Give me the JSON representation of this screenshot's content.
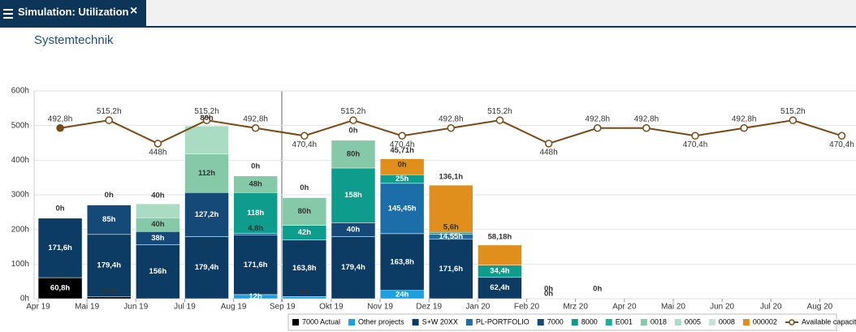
{
  "tab": {
    "title": "Simulation: Utilization"
  },
  "chart_data": {
    "type": "bar",
    "title": "Systemtechnik",
    "stacked": true,
    "grid": true,
    "categories": [
      "Apr 19",
      "Mai 19",
      "Jun 19",
      "Jul 19",
      "Aug 19",
      "Sep 19",
      "Okt 19",
      "Nov 19",
      "Dez 19",
      "Jan 20",
      "Feb 20",
      "Mrz 20",
      "Apr 20",
      "Mai 20",
      "Jun 20",
      "Jul 20",
      "Aug 20"
    ],
    "ylim": [
      0,
      600
    ],
    "yticks": [
      {
        "value": 0,
        "label": "0h"
      },
      {
        "value": 100,
        "label": "100h"
      },
      {
        "value": 200,
        "label": "200h"
      },
      {
        "value": 300,
        "label": "300h"
      },
      {
        "value": 400,
        "label": "400h"
      },
      {
        "value": 500,
        "label": "500h"
      },
      {
        "value": 600,
        "label": "600h"
      }
    ],
    "series": [
      {
        "name": "7000 Actual",
        "color": "#000000",
        "values": [
          60.8,
          6.2,
          null,
          null,
          null,
          null,
          null,
          null,
          null,
          null,
          null,
          null,
          null,
          null,
          null,
          null,
          null
        ],
        "value_labels": [
          "60,8h",
          "6,2h",
          null,
          null,
          null,
          null,
          null,
          null,
          null,
          null,
          null,
          null,
          null,
          null,
          null,
          null,
          null
        ]
      },
      {
        "name": "Other projects",
        "color": "#1ba1e2",
        "values": [
          null,
          null,
          null,
          null,
          12,
          6,
          null,
          24,
          null,
          null,
          null,
          null,
          null,
          null,
          null,
          null,
          null
        ],
        "value_labels": [
          null,
          null,
          null,
          null,
          "12h",
          "6h",
          null,
          "24h",
          null,
          null,
          null,
          null,
          null,
          null,
          null,
          null,
          null
        ]
      },
      {
        "name": "S+W 20XX",
        "color": "#0c3c64",
        "values": [
          171.6,
          179.4,
          156,
          179.4,
          171.6,
          163.8,
          179.4,
          163.8,
          171.6,
          62.4,
          null,
          null,
          null,
          null,
          null,
          null,
          null
        ],
        "value_labels": [
          "171,6h",
          "179,4h",
          "156h",
          "179,4h",
          "171,6h",
          "163,8h",
          "179,4h",
          "163,8h",
          "171,6h",
          "62,4h",
          null,
          null,
          null,
          null,
          null,
          null,
          null
        ]
      },
      {
        "name": "PL-PORTFOLIO",
        "color": "#1b6ea8",
        "values": [
          null,
          null,
          null,
          null,
          null,
          null,
          null,
          145.45,
          14.55,
          null,
          null,
          null,
          null,
          null,
          null,
          null,
          null
        ],
        "value_labels": [
          null,
          null,
          null,
          null,
          null,
          null,
          null,
          "145,45h",
          "14,55h",
          null,
          null,
          null,
          null,
          null,
          null,
          null,
          null
        ]
      },
      {
        "name": "7000",
        "color": "#154a78",
        "values": [
          null,
          85,
          38,
          127.2,
          4.8,
          null,
          40,
          null,
          null,
          null,
          null,
          null,
          null,
          null,
          null,
          null,
          null
        ],
        "value_labels": [
          null,
          "85h",
          "38h",
          "127,2h",
          "4,8h",
          null,
          "40h",
          null,
          null,
          null,
          null,
          null,
          null,
          null,
          null,
          null,
          null
        ]
      },
      {
        "name": "8000",
        "color": "#0e9c8c",
        "values": [
          null,
          null,
          null,
          null,
          118,
          42,
          158,
          25,
          5.6,
          34.4,
          null,
          null,
          null,
          null,
          null,
          null,
          null
        ],
        "value_labels": [
          null,
          null,
          null,
          null,
          "118h",
          "42h",
          "158h",
          "25h",
          "5,6h",
          "34,4h",
          null,
          null,
          null,
          null,
          null,
          null,
          null
        ]
      },
      {
        "name": "E001",
        "color": "#16b39c",
        "values": [
          null,
          null,
          null,
          null,
          null,
          null,
          null,
          null,
          null,
          null,
          0,
          null,
          null,
          null,
          null,
          null,
          null
        ],
        "value_labels": [
          null,
          null,
          null,
          null,
          null,
          null,
          null,
          null,
          null,
          null,
          "0h",
          null,
          null,
          null,
          null,
          null,
          null
        ]
      },
      {
        "name": "0018",
        "color": "#86c9a9",
        "values": [
          null,
          null,
          40,
          112,
          48,
          80,
          80,
          null,
          null,
          null,
          null,
          null,
          null,
          null,
          null,
          null,
          null
        ],
        "value_labels": [
          null,
          null,
          "40h",
          "112h",
          "48h",
          "80h",
          "80h",
          null,
          null,
          null,
          null,
          null,
          null,
          null,
          null,
          null,
          null
        ]
      },
      {
        "name": "0005",
        "color": "#a9dcc3",
        "values": [
          null,
          null,
          40,
          80,
          null,
          null,
          null,
          null,
          null,
          null,
          null,
          null,
          null,
          null,
          null,
          null,
          null
        ],
        "value_labels": [
          null,
          null,
          "40h",
          "80h",
          null,
          null,
          null,
          null,
          null,
          null,
          null,
          null,
          null,
          null,
          null,
          null,
          null
        ]
      },
      {
        "name": "0008",
        "color": "#c3e6d3",
        "values": [
          0,
          0,
          null,
          null,
          0,
          0,
          0,
          0,
          null,
          null,
          0,
          0,
          null,
          null,
          null,
          null,
          null
        ],
        "value_labels": [
          "0h",
          "0h",
          null,
          null,
          "0h",
          "0h",
          "0h",
          "0h",
          null,
          null,
          "0h",
          "0h",
          null,
          null,
          null,
          null,
          null
        ]
      },
      {
        "name": "000002",
        "color": "#e08f1c",
        "values": [
          null,
          null,
          null,
          null,
          null,
          null,
          null,
          45.71,
          136.1,
          58.18,
          null,
          null,
          null,
          null,
          null,
          null,
          null
        ],
        "value_labels": [
          null,
          null,
          null,
          null,
          null,
          null,
          null,
          "45,71h",
          "136,1h",
          "58,18h",
          null,
          null,
          null,
          null,
          null,
          null,
          null
        ]
      },
      {
        "name": "Available capacity",
        "type": "line",
        "color": "#7a4a14",
        "values": [
          492.8,
          515.2,
          448,
          515.2,
          492.8,
          470.4,
          515.2,
          470.4,
          492.8,
          515.2,
          448,
          492.8,
          492.8,
          470.4,
          492.8,
          515.2,
          470.4
        ],
        "value_labels": [
          "492,8h",
          "515,2h",
          "448h",
          "515,2h",
          "492,8h",
          "470,4h",
          "515,2h",
          "470,4h",
          "492,8h",
          "515,2h",
          "448h",
          "492,8h",
          "492,8h",
          "470,4h",
          "492,8h",
          "515,2h",
          "470,4h"
        ]
      }
    ]
  }
}
